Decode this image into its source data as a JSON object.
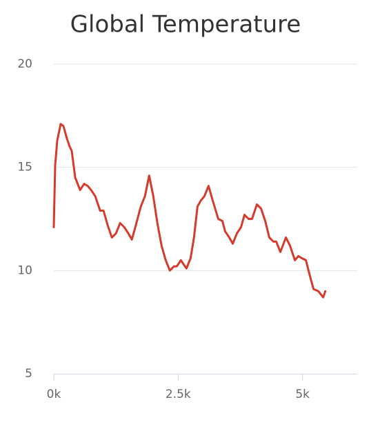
{
  "chart_data": {
    "type": "line",
    "title": "Global Temperature",
    "x": [
      0,
      28,
      69,
      139,
      194,
      264,
      319,
      361,
      431,
      528,
      611,
      681,
      750,
      833,
      931,
      1000,
      1083,
      1167,
      1250,
      1333,
      1417,
      1500,
      1569,
      1639,
      1750,
      1833,
      1917,
      2000,
      2083,
      2167,
      2250,
      2333,
      2417,
      2472,
      2556,
      2611,
      2667,
      2750,
      2819,
      2889,
      2958,
      3028,
      3111,
      3194,
      3306,
      3389,
      3444,
      3528,
      3597,
      3681,
      3764,
      3833,
      3917,
      3986,
      4083,
      4167,
      4250,
      4333,
      4417,
      4472,
      4556,
      4667,
      4750,
      4847,
      4917,
      4986,
      5069,
      5153,
      5222,
      5319,
      5417,
      5458
    ],
    "series": [
      {
        "name": "Temperature",
        "color": "#d63a2b",
        "values": [
          12.1,
          15.1,
          16.3,
          17.1,
          17.0,
          16.4,
          16.0,
          15.8,
          14.5,
          13.9,
          14.2,
          14.1,
          13.9,
          13.6,
          12.9,
          12.9,
          12.2,
          11.6,
          11.8,
          12.3,
          12.1,
          11.8,
          11.5,
          12.1,
          13.1,
          13.6,
          14.6,
          13.6,
          12.3,
          11.2,
          10.5,
          10.0,
          10.2,
          10.2,
          10.5,
          10.3,
          10.1,
          10.6,
          11.6,
          13.1,
          13.4,
          13.6,
          14.1,
          13.4,
          12.5,
          12.4,
          11.9,
          11.6,
          11.3,
          11.8,
          12.1,
          12.7,
          12.5,
          12.5,
          13.2,
          13.0,
          12.4,
          11.6,
          11.4,
          11.4,
          10.9,
          11.6,
          11.2,
          10.5,
          10.7,
          10.6,
          10.5,
          9.7,
          9.1,
          9.0,
          8.7,
          9.0
        ]
      }
    ],
    "xlim": [
      0,
      6100
    ],
    "ylim": [
      5,
      20
    ],
    "xticks": [
      {
        "value": 0,
        "label": "0k"
      },
      {
        "value": 2500,
        "label": "2.5k"
      },
      {
        "value": 5000,
        "label": "5k"
      }
    ],
    "yticks": [
      5,
      10,
      15,
      20
    ],
    "grid": true
  }
}
